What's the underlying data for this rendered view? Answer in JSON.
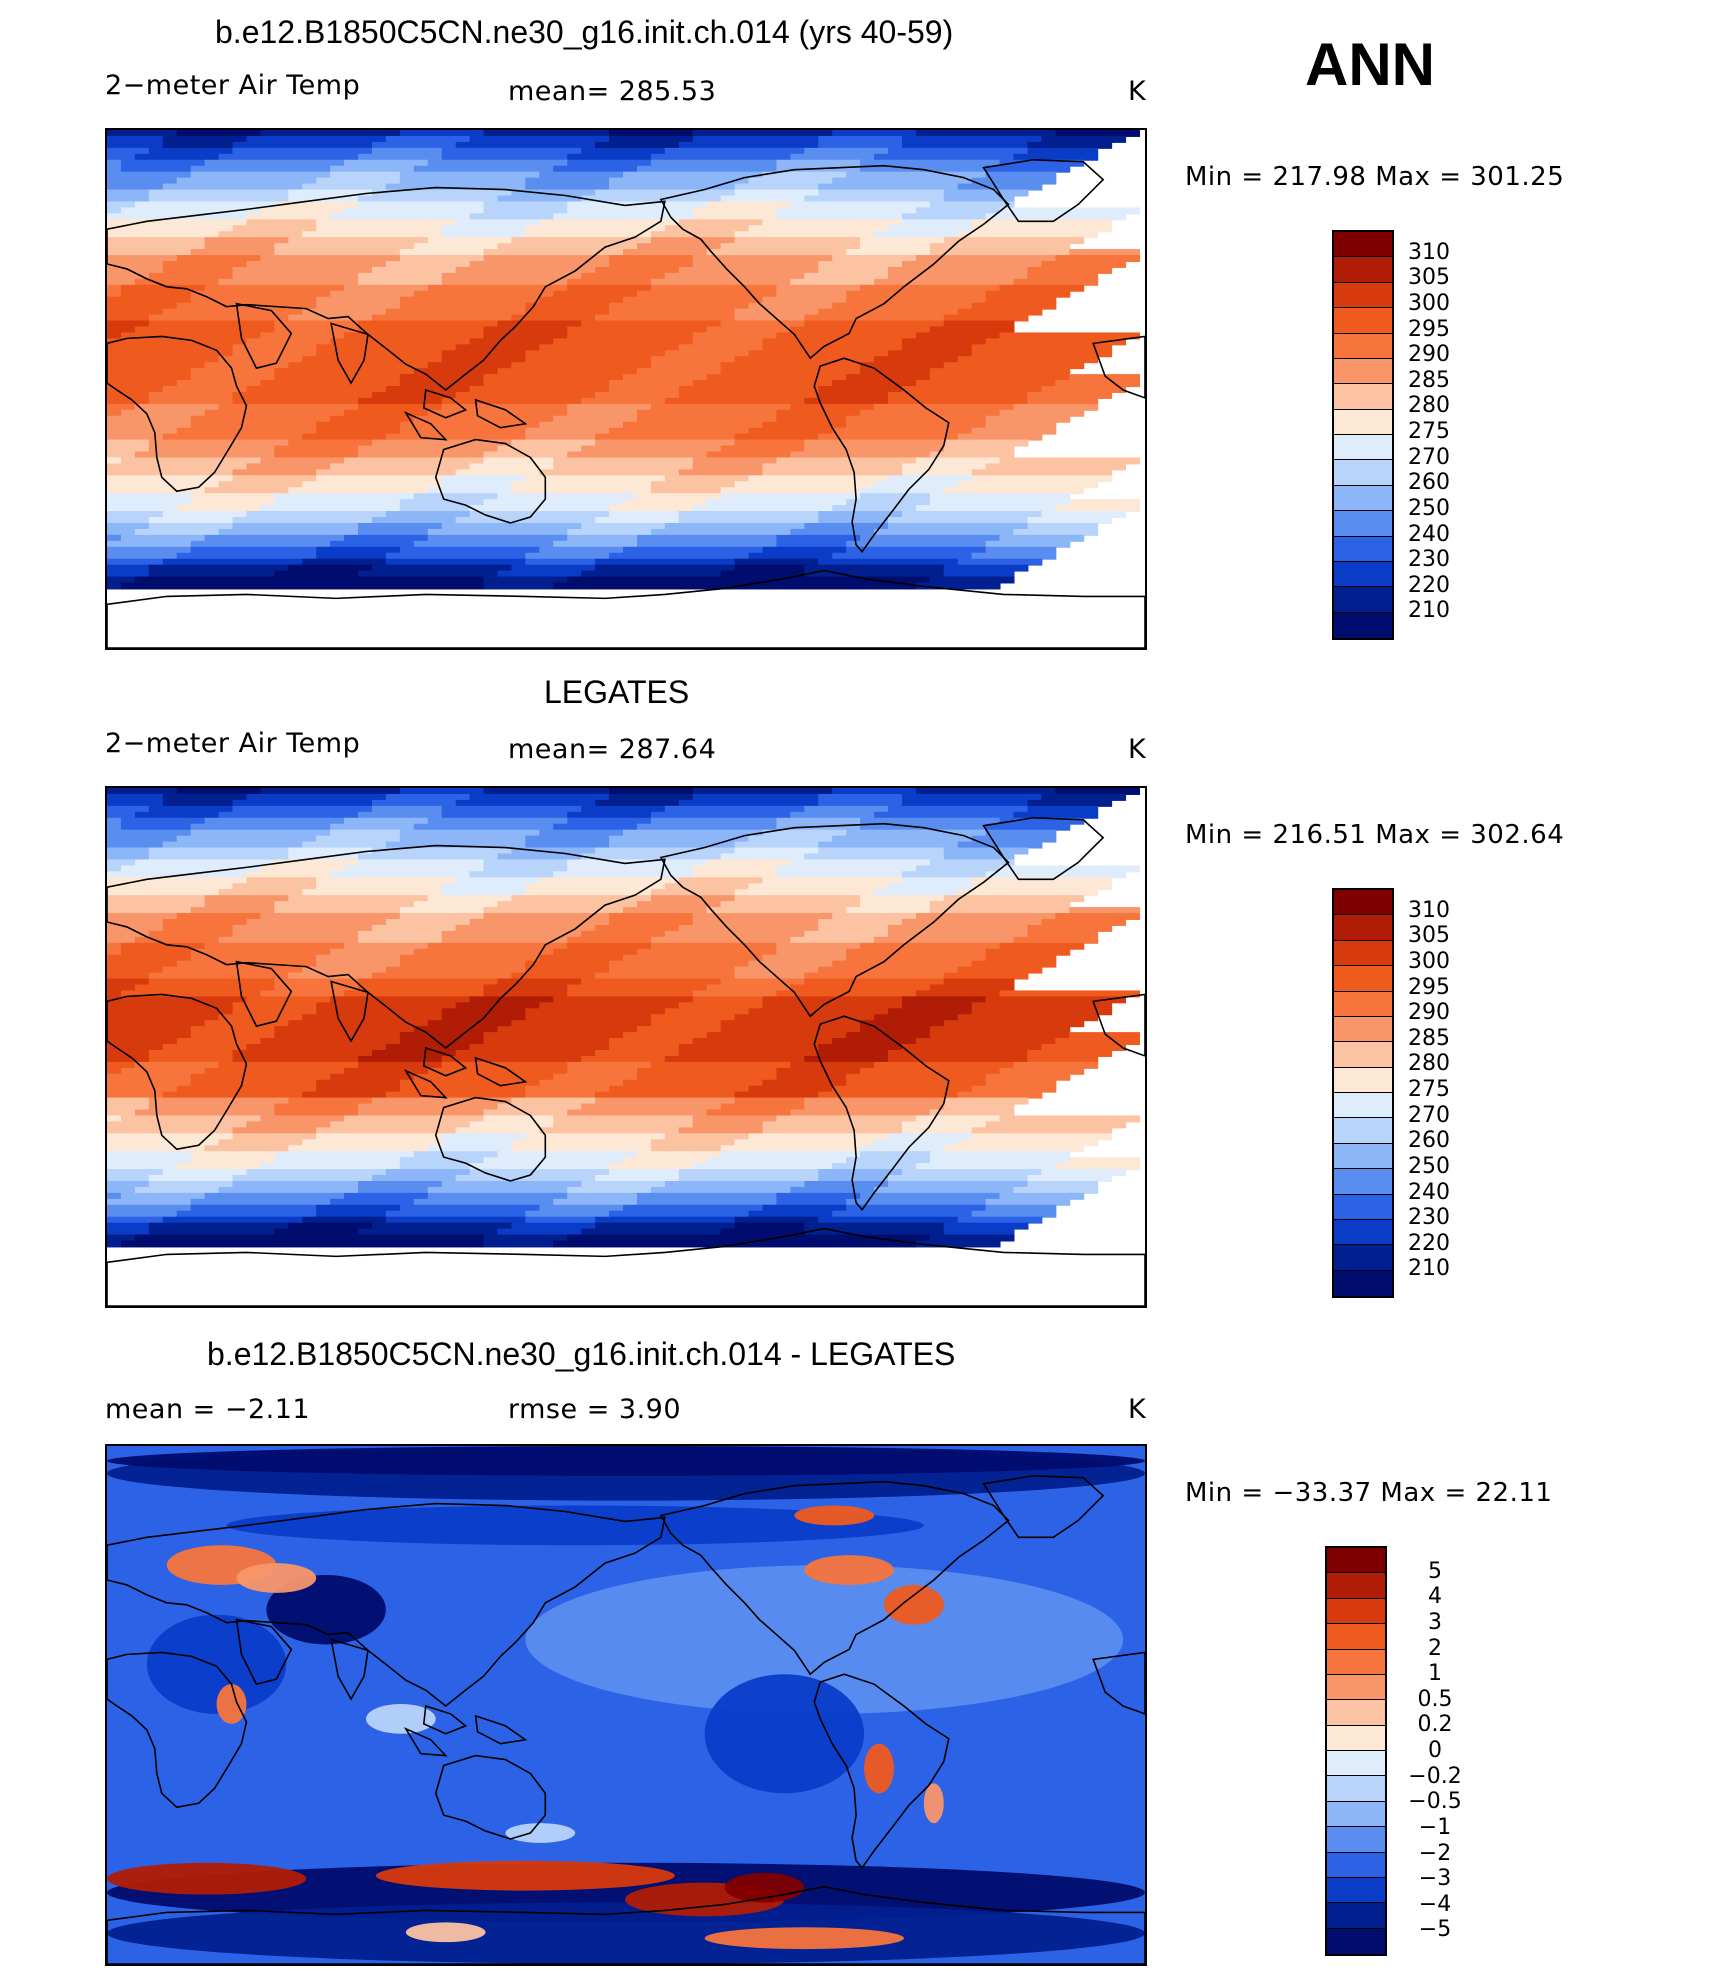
{
  "header": {
    "season": "ANN"
  },
  "panels": [
    {
      "title": "b.e12.B1850C5CN.ne30_g16.init.ch.014 (yrs 40-59)",
      "variable": "2−meter Air Temp",
      "stat": "mean=  285.53",
      "units": "K",
      "minmax": "Min  =  217.98  Max  =  301.25",
      "levels": [
        "310",
        "305",
        "300",
        "295",
        "290",
        "285",
        "280",
        "275",
        "270",
        "260",
        "250",
        "240",
        "230",
        "220",
        "210"
      ],
      "kind": "abs",
      "offset": 0
    },
    {
      "title": "LEGATES",
      "variable": "2−meter Air Temp",
      "stat": "mean=  287.64",
      "units": "K",
      "minmax": "Min  =  216.51  Max  =  302.64",
      "levels": [
        "310",
        "305",
        "300",
        "295",
        "290",
        "285",
        "280",
        "275",
        "270",
        "260",
        "250",
        "240",
        "230",
        "220",
        "210"
      ],
      "kind": "abs",
      "offset": 1
    },
    {
      "title": "b.e12.B1850C5CN.ne30_g16.init.ch.014 - LEGATES",
      "variable": "mean  =    −2.11",
      "stat": "rmse  =      3.90",
      "units": "K",
      "minmax": "Min  =  −33.37  Max  =    22.11",
      "levels": [
        "5",
        "4",
        "3",
        "2",
        "1",
        "0.5",
        "0.2",
        "0",
        "−0.2",
        "−0.5",
        "−1",
        "−2",
        "−3",
        "−4",
        "−5"
      ],
      "kind": "diff",
      "offset": 0
    }
  ],
  "colors": {
    "abs_scale": [
      "#7f0000",
      "#b01c05",
      "#d73a0c",
      "#ef5a1e",
      "#f7753c",
      "#f8966a",
      "#fbc3a2",
      "#fde8d6",
      "#deecfb",
      "#b8d4fb",
      "#8cb6f8",
      "#5a8df0",
      "#2c63e6",
      "#0a3cc8",
      "#011f8f",
      "#000c6e"
    ],
    "diff_scale": [
      "#7f0000",
      "#b01c05",
      "#d73a0c",
      "#ef5a1e",
      "#f7753c",
      "#f8966a",
      "#fbc3a2",
      "#fde8d6",
      "#deecfb",
      "#b8d4fb",
      "#8cb6f8",
      "#5a8df0",
      "#2c63e6",
      "#0a3cc8",
      "#011f8f",
      "#000c6e"
    ]
  }
}
